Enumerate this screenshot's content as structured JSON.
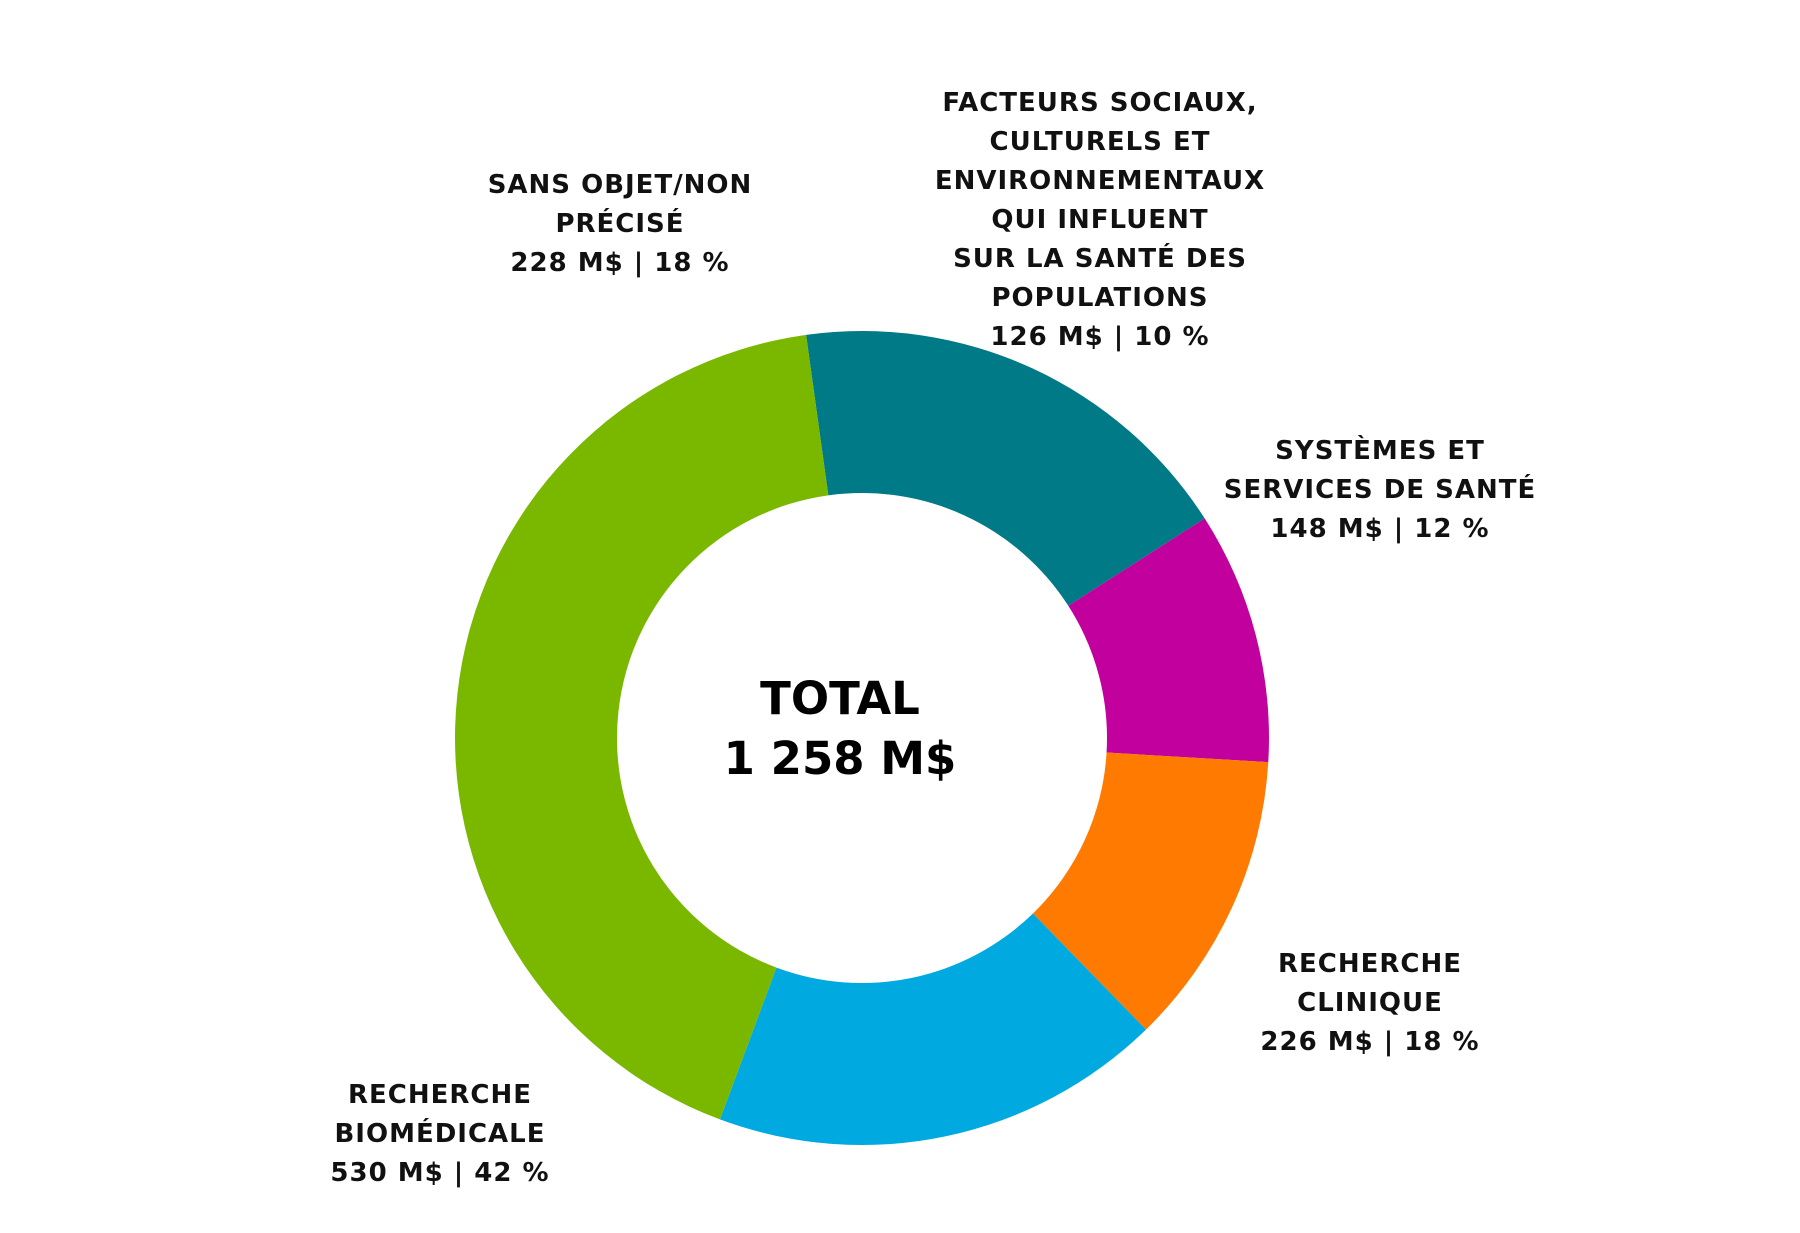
{
  "chart_data": {
    "type": "pie",
    "variant": "donut",
    "center": {
      "title": "TOTAL",
      "total": "1 258 M$"
    },
    "unit": "M$",
    "slices": [
      {
        "name": "Sans objet/non précisé",
        "value": 228,
        "percent": 18,
        "color": "#007A87",
        "label_lines": [
          "SANS OBJET/NON",
          "PRÉCISÉ",
          "228 M$ | 18 %"
        ]
      },
      {
        "name": "Facteurs sociaux, culturels et environnementaux qui influent sur la santé des populations",
        "value": 126,
        "percent": 10,
        "color": "#C2009E",
        "label_lines": [
          "FACTEURS SOCIAUX,",
          "CULTURELS ET",
          "ENVIRONNEMENTAUX",
          "QUI INFLUENT",
          "SUR LA SANTÉ DES",
          "POPULATIONS",
          "126 M$ | 10 %"
        ]
      },
      {
        "name": "Systèmes et services de santé",
        "value": 148,
        "percent": 12,
        "color": "#FF7A00",
        "label_lines": [
          "SYSTÈMES ET",
          "SERVICES DE SANTÉ",
          "148 M$ | 12 %"
        ]
      },
      {
        "name": "Recherche clinique",
        "value": 226,
        "percent": 18,
        "color": "#00A9E0",
        "label_lines": [
          "RECHERCHE",
          "CLINIQUE",
          "226 M$ | 18 %"
        ]
      },
      {
        "name": "Recherche biomédicale",
        "value": 530,
        "percent": 42,
        "color": "#7AB800",
        "label_lines": [
          "RECHERCHE",
          "BIOMÉDICALE",
          "530 M$ | 42 %"
        ]
      }
    ]
  }
}
